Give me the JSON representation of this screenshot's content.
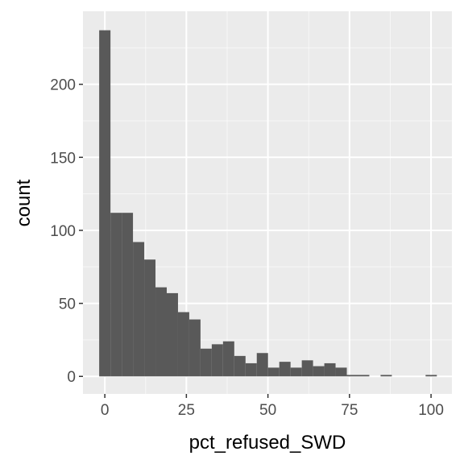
{
  "chart_data": {
    "type": "bar",
    "subtype": "histogram",
    "xlabel": "pct_refused_SWD",
    "ylabel": "count",
    "x_ticks": [
      0,
      25,
      50,
      75,
      100
    ],
    "y_ticks": [
      0,
      50,
      100,
      150,
      200
    ],
    "xlim": [
      -6.7,
      106.4
    ],
    "ylim": [
      -12,
      250
    ],
    "grid": true,
    "legend": "none",
    "bin_width": 3.45,
    "bins": [
      {
        "x0": -1.73,
        "x1": 1.73,
        "count": 237
      },
      {
        "x0": 1.73,
        "x1": 5.18,
        "count": 112
      },
      {
        "x0": 5.18,
        "x1": 8.63,
        "count": 112
      },
      {
        "x0": 8.63,
        "x1": 12.08,
        "count": 92
      },
      {
        "x0": 12.08,
        "x1": 15.53,
        "count": 80
      },
      {
        "x0": 15.53,
        "x1": 18.98,
        "count": 61
      },
      {
        "x0": 18.98,
        "x1": 22.43,
        "count": 57
      },
      {
        "x0": 22.43,
        "x1": 25.88,
        "count": 44
      },
      {
        "x0": 25.88,
        "x1": 29.33,
        "count": 39
      },
      {
        "x0": 29.33,
        "x1": 32.78,
        "count": 19
      },
      {
        "x0": 32.78,
        "x1": 36.23,
        "count": 22
      },
      {
        "x0": 36.23,
        "x1": 39.68,
        "count": 24
      },
      {
        "x0": 39.68,
        "x1": 43.13,
        "count": 14
      },
      {
        "x0": 43.13,
        "x1": 46.58,
        "count": 9
      },
      {
        "x0": 46.58,
        "x1": 50.03,
        "count": 16
      },
      {
        "x0": 50.03,
        "x1": 53.48,
        "count": 6
      },
      {
        "x0": 53.48,
        "x1": 56.93,
        "count": 10
      },
      {
        "x0": 56.93,
        "x1": 60.38,
        "count": 6
      },
      {
        "x0": 60.38,
        "x1": 63.83,
        "count": 11
      },
      {
        "x0": 63.83,
        "x1": 67.28,
        "count": 7
      },
      {
        "x0": 67.28,
        "x1": 70.73,
        "count": 9
      },
      {
        "x0": 70.73,
        "x1": 74.18,
        "count": 6
      },
      {
        "x0": 74.18,
        "x1": 77.63,
        "count": 1
      },
      {
        "x0": 77.63,
        "x1": 81.08,
        "count": 1
      },
      {
        "x0": 81.08,
        "x1": 84.53,
        "count": 0
      },
      {
        "x0": 84.53,
        "x1": 87.98,
        "count": 1
      },
      {
        "x0": 87.98,
        "x1": 91.43,
        "count": 0
      },
      {
        "x0": 91.43,
        "x1": 94.88,
        "count": 0
      },
      {
        "x0": 94.88,
        "x1": 98.33,
        "count": 0
      },
      {
        "x0": 98.33,
        "x1": 101.78,
        "count": 1
      }
    ],
    "colors": {
      "bar": "#595959",
      "panel": "#ebebeb",
      "grid_major": "#ffffff",
      "tick_text": "#4d4d4d",
      "axis_title": "#000000"
    }
  }
}
